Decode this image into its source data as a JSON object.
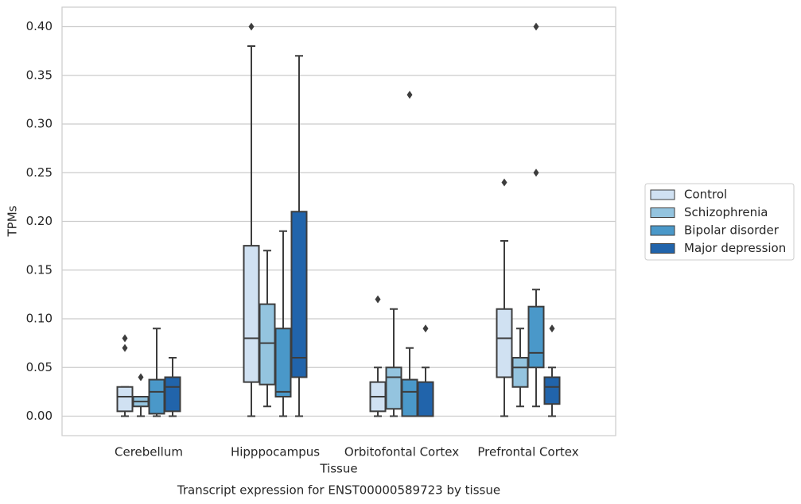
{
  "chart_data": {
    "type": "box",
    "title": "Transcript expression for ENST00000589723 by tissue",
    "xlabel": "Tissue",
    "ylabel": "TPMs",
    "categories": [
      "Cerebellum",
      "Hipppocampus",
      "Orbitofontal Cortex",
      "Prefrontal Cortex"
    ],
    "ylim": [
      -0.02,
      0.42
    ],
    "yticks": [
      {
        "value": 0,
        "label": "0.00"
      },
      0.05,
      {
        "value": 0.1,
        "label": "0.10"
      },
      0.15,
      {
        "value": 0.2,
        "label": "0.20"
      },
      0.25,
      {
        "value": 0.3,
        "label": "0.30"
      },
      0.35,
      {
        "value": 0.4,
        "label": "0.40"
      }
    ],
    "grid": true,
    "legend": "right",
    "series": [
      {
        "name": "Control",
        "color": "#d0e1f2",
        "min": [
          0,
          0,
          0,
          0
        ],
        "q1": [
          0.005,
          0.035,
          0.005,
          0.04
        ],
        "median": [
          0.02,
          0.08,
          0.02,
          0.08
        ],
        "q3": [
          0.03,
          0.175,
          0.035,
          0.11
        ],
        "max": [
          0.03,
          0.38,
          0.05,
          0.18
        ],
        "outliers": [
          [
            0.08,
            0.07
          ],
          [
            0.4
          ],
          [
            0.12
          ],
          [
            0.24
          ]
        ]
      },
      {
        "name": "Schizophrenia",
        "color": "#94c4df",
        "min": [
          0,
          0.01,
          0,
          0.01
        ],
        "q1": [
          0.01,
          0.0325,
          0.0075,
          0.03
        ],
        "median": [
          0.015,
          0.075,
          0.04,
          0.05
        ],
        "q3": [
          0.02,
          0.115,
          0.05,
          0.06
        ],
        "max": [
          0.02,
          0.17,
          0.11,
          0.09
        ],
        "outliers": [
          [
            0.04
          ],
          [],
          [],
          []
        ]
      },
      {
        "name": "Bipolar disorder",
        "color": "#4a98c9",
        "min": [
          0,
          0,
          0,
          0.01
        ],
        "q1": [
          0.0025,
          0.02,
          0,
          0.05
        ],
        "median": [
          0.025,
          0.025,
          0.025,
          0.065
        ],
        "q3": [
          0.0375,
          0.09,
          0.0375,
          0.1125
        ],
        "max": [
          0.09,
          0.19,
          0.07,
          0.13
        ],
        "outliers": [
          [],
          [],
          [
            0.33
          ],
          [
            0.25,
            0.4
          ]
        ]
      },
      {
        "name": "Major depression",
        "color": "#2164ab",
        "min": [
          0,
          0,
          0,
          0
        ],
        "q1": [
          0.005,
          0.04,
          0,
          0.0125
        ],
        "median": [
          0.03,
          0.06,
          0,
          0.03
        ],
        "q3": [
          0.04,
          0.21,
          0.035,
          0.04
        ],
        "max": [
          0.06,
          0.37,
          0.05,
          0.05
        ],
        "outliers": [
          [],
          [],
          [
            0.09
          ],
          [
            0.09
          ]
        ]
      }
    ]
  }
}
